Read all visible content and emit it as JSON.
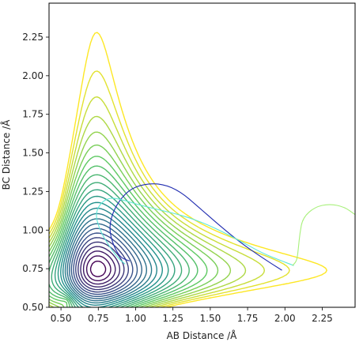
{
  "chart_data": {
    "type": "contour",
    "title": "",
    "xlabel": "AB Distance /Å",
    "ylabel": "BC Distance /Å",
    "xlim": [
      0.42,
      2.47
    ],
    "ylim": [
      0.5,
      2.47
    ],
    "xticks": [
      0.5,
      0.75,
      1.0,
      1.25,
      1.5,
      1.75,
      2.0,
      2.25
    ],
    "xtick_labels": [
      "0.50",
      "0.75",
      "1.00",
      "1.25",
      "1.50",
      "1.75",
      "2.00",
      "2.25"
    ],
    "yticks": [
      0.5,
      0.75,
      1.0,
      1.25,
      1.5,
      1.75,
      2.0,
      2.25
    ],
    "ytick_labels": [
      "0.50",
      "0.75",
      "1.00",
      "1.25",
      "1.50",
      "1.75",
      "2.00",
      "2.25"
    ],
    "grid": false,
    "colormap": "viridis",
    "contour_levels": 25,
    "trajectories": [
      {
        "color": "#1f2bb0",
        "points": [
          [
            1.98,
            0.74
          ],
          [
            1.85,
            0.82
          ],
          [
            1.7,
            0.92
          ],
          [
            1.55,
            1.04
          ],
          [
            1.42,
            1.15
          ],
          [
            1.3,
            1.25
          ],
          [
            1.18,
            1.3
          ],
          [
            1.06,
            1.3
          ],
          [
            0.95,
            1.26
          ],
          [
            0.86,
            1.15
          ],
          [
            0.82,
            1.02
          ],
          [
            0.85,
            0.9
          ],
          [
            0.9,
            0.82
          ],
          [
            0.96,
            0.8
          ]
        ]
      },
      {
        "color": "#5ee8d8",
        "points": [
          [
            2.06,
            0.77
          ],
          [
            1.98,
            0.8
          ],
          [
            1.85,
            0.85
          ],
          [
            1.72,
            0.92
          ],
          [
            1.58,
            0.99
          ],
          [
            1.47,
            1.04
          ],
          [
            1.36,
            1.08
          ],
          [
            1.25,
            1.11
          ],
          [
            1.12,
            1.14
          ],
          [
            1.0,
            1.17
          ],
          [
            0.9,
            1.2
          ],
          [
            0.82,
            1.21
          ],
          [
            0.76,
            1.17
          ],
          [
            0.73,
            1.1
          ],
          [
            0.76,
            1.0
          ],
          [
            0.82,
            0.9
          ],
          [
            0.88,
            0.82
          ],
          [
            0.93,
            0.78
          ]
        ]
      },
      {
        "color": "#a7f07a",
        "points": [
          [
            2.47,
            1.1
          ],
          [
            2.4,
            1.15
          ],
          [
            2.3,
            1.17
          ],
          [
            2.2,
            1.15
          ],
          [
            2.12,
            1.08
          ],
          [
            2.1,
            0.98
          ],
          [
            2.09,
            0.88
          ],
          [
            2.08,
            0.8
          ],
          [
            2.05,
            0.77
          ]
        ]
      }
    ]
  }
}
